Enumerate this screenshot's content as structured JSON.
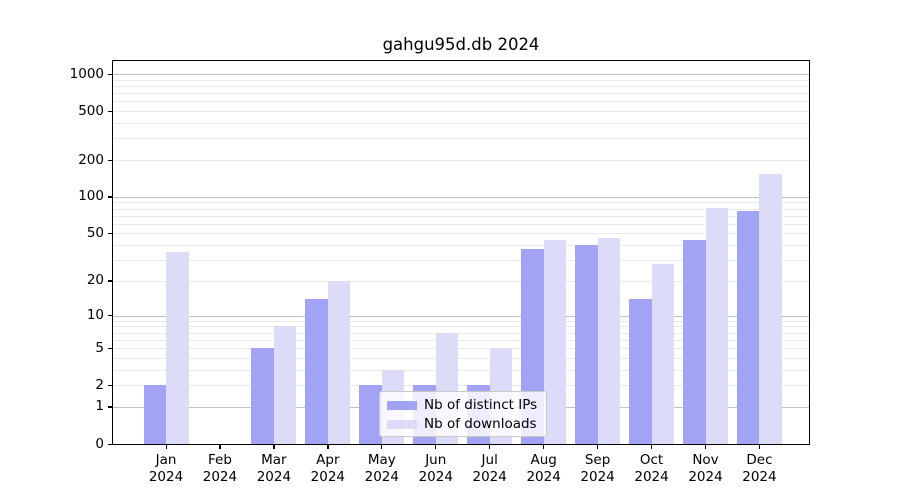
{
  "chart_data": {
    "type": "bar",
    "title": "gahgu95d.db 2024",
    "categories": [
      "Jan",
      "Feb",
      "Mar",
      "Apr",
      "May",
      "Jun",
      "Jul",
      "Aug",
      "Sep",
      "Oct",
      "Nov",
      "Dec"
    ],
    "x_tick_year": "2024",
    "series": [
      {
        "name": "Nb of distinct IPs",
        "color": "#a3a3f5",
        "values": [
          2,
          0,
          5,
          14,
          2,
          2,
          2,
          37,
          40,
          14,
          44,
          76
        ]
      },
      {
        "name": "Nb of downloads",
        "color": "#dcdcf9",
        "values": [
          35,
          0,
          8,
          20,
          3,
          7,
          5,
          44,
          46,
          28,
          81,
          155
        ]
      }
    ],
    "yticks": [
      0,
      1,
      2,
      5,
      10,
      20,
      50,
      100,
      200,
      500,
      1000
    ],
    "ylim": [
      0,
      1000
    ],
    "scale": "log10(value+1)",
    "grid": true,
    "legend_position": "lower center inside",
    "gridline_minor_color": "#e9e9e9",
    "gridline_major_color": "#c3c3c3",
    "axis_color": "#000000"
  }
}
